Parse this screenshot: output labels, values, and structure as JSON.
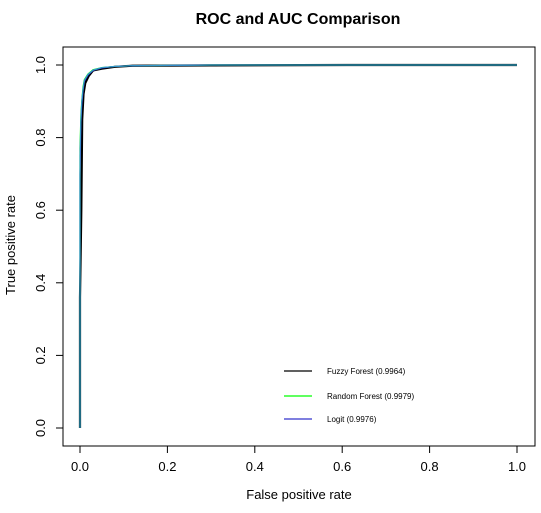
{
  "chart_data": {
    "type": "line",
    "title": "ROC and AUC Comparison",
    "xlabel": "False positive rate",
    "ylabel": "True positive rate",
    "xlim": [
      0.0,
      1.0
    ],
    "ylim": [
      0.0,
      1.0
    ],
    "xticks": [
      "0.0",
      "0.2",
      "0.4",
      "0.6",
      "0.8",
      "1.0"
    ],
    "yticks": [
      "0.0",
      "0.2",
      "0.4",
      "0.6",
      "0.8",
      "1.0"
    ],
    "grid": false,
    "legend_position": "bottom-right",
    "series": [
      {
        "name": "Fuzzy Forest (0.9964)",
        "color": "#000000",
        "x": [
          0.0,
          0.0,
          0.003,
          0.005,
          0.008,
          0.012,
          0.02,
          0.03,
          0.05,
          0.08,
          0.12,
          0.3,
          0.61,
          1.0
        ],
        "y": [
          0.0,
          0.36,
          0.6,
          0.85,
          0.92,
          0.95,
          0.97,
          0.985,
          0.99,
          0.995,
          0.998,
          0.999,
          1.0,
          1.0
        ]
      },
      {
        "name": "Random Forest (0.9979)",
        "color": "#00ff00",
        "x": [
          0.0,
          0.0,
          0.002,
          0.004,
          0.007,
          0.01,
          0.018,
          0.03,
          0.05,
          0.08,
          0.12,
          0.3,
          1.0
        ],
        "y": [
          0.0,
          0.77,
          0.86,
          0.9,
          0.94,
          0.96,
          0.975,
          0.987,
          0.993,
          0.996,
          0.998,
          1.0,
          1.0
        ]
      },
      {
        "name": "Logit (0.9976)",
        "color": "#3333cc",
        "x": [
          0.0,
          0.0,
          0.002,
          0.004,
          0.007,
          0.01,
          0.018,
          0.03,
          0.05,
          0.08,
          0.12,
          0.3,
          1.0
        ],
        "y": [
          0.0,
          0.7,
          0.84,
          0.89,
          0.93,
          0.955,
          0.972,
          0.985,
          0.992,
          0.996,
          0.998,
          1.0,
          1.0
        ]
      },
      {
        "name": "",
        "color": "#3399cc",
        "x": [
          0.0,
          0.0,
          0.002,
          0.004,
          0.007,
          0.01,
          0.018,
          0.03,
          0.05,
          0.08,
          0.12,
          0.3,
          1.0
        ],
        "y": [
          0.0,
          0.75,
          0.85,
          0.9,
          0.935,
          0.958,
          0.974,
          0.986,
          0.993,
          0.996,
          0.998,
          1.0,
          1.0
        ]
      }
    ]
  }
}
